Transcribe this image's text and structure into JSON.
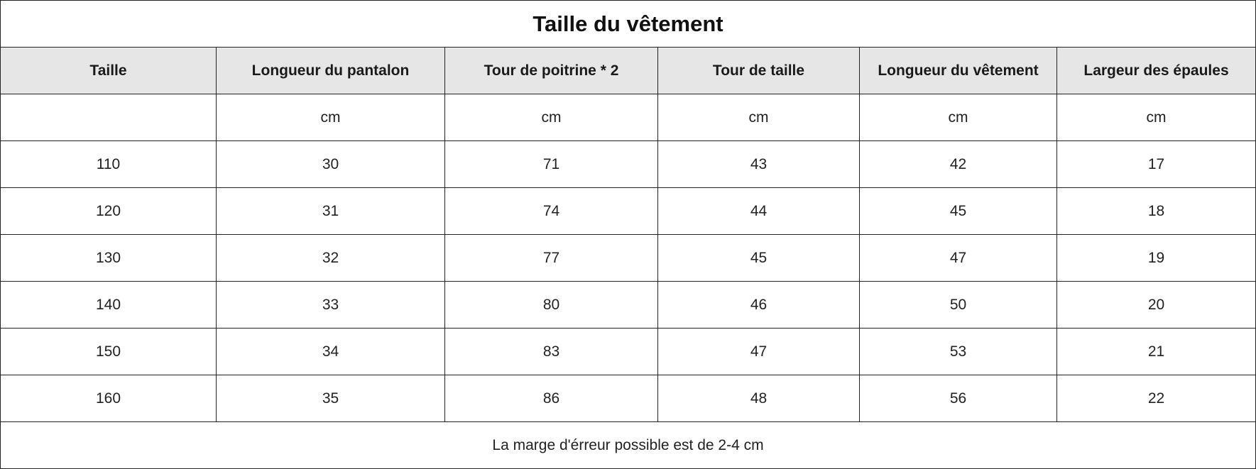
{
  "table": {
    "title": "Taille du vêtement",
    "headers": [
      "Taille",
      "Longueur du pantalon",
      "Tour de poitrine * 2",
      "Tour de taille",
      "Longueur du vêtement",
      "Largeur des épaules"
    ],
    "units": [
      "",
      "cm",
      "cm",
      "cm",
      "cm",
      "cm"
    ],
    "rows": [
      [
        "110",
        "30",
        "71",
        "43",
        "42",
        "17"
      ],
      [
        "120",
        "31",
        "74",
        "44",
        "45",
        "18"
      ],
      [
        "130",
        "32",
        "77",
        "45",
        "47",
        "19"
      ],
      [
        "140",
        "33",
        "80",
        "46",
        "50",
        "20"
      ],
      [
        "150",
        "34",
        "83",
        "47",
        "53",
        "21"
      ],
      [
        "160",
        "35",
        "86",
        "48",
        "56",
        "22"
      ]
    ],
    "footer": "La marge d'érreur possible est de 2-4 cm"
  },
  "colors": {
    "header_background": "#e6e6e6",
    "border": "#222222",
    "text": "#1a1a1a"
  }
}
